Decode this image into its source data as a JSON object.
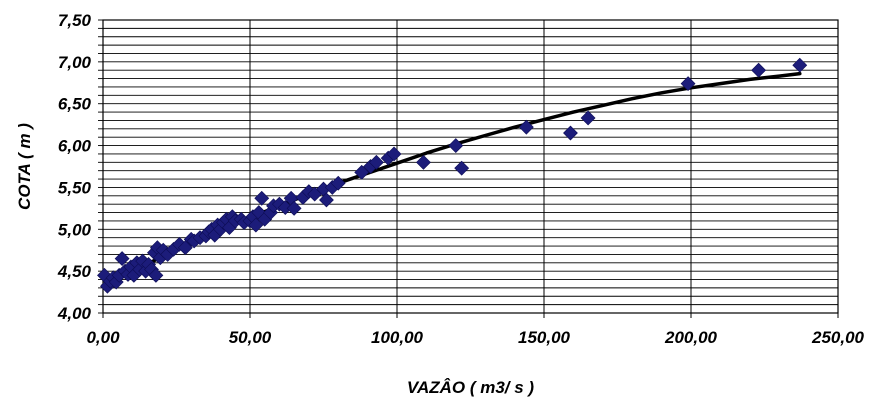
{
  "chart_data": {
    "type": "scatter",
    "title": "",
    "xlabel": "VAZÂO ( m3/ s )",
    "ylabel": "COTA ( m )",
    "xlim": [
      0,
      250
    ],
    "ylim": [
      4.0,
      7.5
    ],
    "x_major_ticks": [
      0,
      50,
      100,
      150,
      200,
      250
    ],
    "x_tick_labels": [
      "0,00",
      "50,00",
      "100,00",
      "150,00",
      "200,00",
      "250,00"
    ],
    "y_ticks": [
      4.0,
      4.1,
      4.2,
      4.3,
      4.4,
      4.5,
      4.6,
      4.7,
      4.8,
      4.9,
      5.0,
      5.1,
      5.2,
      5.3,
      5.4,
      5.5,
      5.6,
      5.7,
      5.8,
      5.9,
      6.0,
      6.1,
      6.2,
      6.3,
      6.4,
      6.5,
      6.6,
      6.7,
      6.8,
      6.9,
      7.0,
      7.1,
      7.2,
      7.3,
      7.4,
      7.5
    ],
    "y_tick_labels": [
      "4,00",
      "4,50",
      "5,00",
      "5,50",
      "6,00",
      "6,50",
      "7,00",
      "7,50"
    ],
    "grid": true,
    "marker_color": "#1c1c7a",
    "curve_color": "#000000",
    "series": [
      {
        "type": "scatter",
        "points": [
          [
            0.5,
            4.45
          ],
          [
            1.5,
            4.32
          ],
          [
            2.5,
            4.38
          ],
          [
            3.5,
            4.42
          ],
          [
            4.5,
            4.37
          ],
          [
            5.5,
            4.45
          ],
          [
            6.5,
            4.65
          ],
          [
            7.5,
            4.5
          ],
          [
            8.5,
            4.46
          ],
          [
            9.5,
            4.55
          ],
          [
            10.5,
            4.45
          ],
          [
            11.5,
            4.6
          ],
          [
            12.5,
            4.52
          ],
          [
            13.5,
            4.62
          ],
          [
            14.5,
            4.5
          ],
          [
            15.5,
            4.58
          ],
          [
            16.5,
            4.52
          ],
          [
            17.5,
            4.72
          ],
          [
            18.0,
            4.45
          ],
          [
            18.5,
            4.78
          ],
          [
            19.5,
            4.66
          ],
          [
            20.5,
            4.75
          ],
          [
            22,
            4.7
          ],
          [
            24,
            4.76
          ],
          [
            26,
            4.82
          ],
          [
            28,
            4.78
          ],
          [
            30,
            4.88
          ],
          [
            31,
            4.86
          ],
          [
            33,
            4.9
          ],
          [
            35,
            4.92
          ],
          [
            36,
            4.97
          ],
          [
            37,
            5.0
          ],
          [
            38,
            4.93
          ],
          [
            39,
            5.05
          ],
          [
            40,
            5.0
          ],
          [
            41,
            5.08
          ],
          [
            42,
            5.12
          ],
          [
            43,
            5.02
          ],
          [
            44,
            5.15
          ],
          [
            45,
            5.1
          ],
          [
            47,
            5.12
          ],
          [
            48,
            5.08
          ],
          [
            50,
            5.1
          ],
          [
            51,
            5.15
          ],
          [
            52,
            5.05
          ],
          [
            53,
            5.2
          ],
          [
            54,
            5.37
          ],
          [
            55,
            5.12
          ],
          [
            57,
            5.2
          ],
          [
            58,
            5.28
          ],
          [
            60,
            5.3
          ],
          [
            62,
            5.26
          ],
          [
            64,
            5.37
          ],
          [
            65,
            5.25
          ],
          [
            68,
            5.38
          ],
          [
            70,
            5.45
          ],
          [
            72,
            5.42
          ],
          [
            75,
            5.48
          ],
          [
            76,
            5.35
          ],
          [
            78,
            5.5
          ],
          [
            80,
            5.55
          ],
          [
            88,
            5.68
          ],
          [
            91,
            5.75
          ],
          [
            93,
            5.8
          ],
          [
            97,
            5.85
          ],
          [
            99,
            5.9
          ],
          [
            109,
            5.8
          ],
          [
            120,
            6.0
          ],
          [
            122,
            5.73
          ],
          [
            144,
            6.22
          ],
          [
            159,
            6.15
          ],
          [
            165,
            6.33
          ],
          [
            199,
            6.74
          ],
          [
            223,
            6.9
          ],
          [
            237,
            6.96
          ]
        ]
      },
      {
        "type": "line",
        "points": [
          [
            0,
            4.33
          ],
          [
            10,
            4.5
          ],
          [
            20,
            4.67
          ],
          [
            30,
            4.84
          ],
          [
            40,
            4.99
          ],
          [
            50,
            5.14
          ],
          [
            60,
            5.28
          ],
          [
            70,
            5.42
          ],
          [
            80,
            5.55
          ],
          [
            90,
            5.67
          ],
          [
            100,
            5.79
          ],
          [
            110,
            5.91
          ],
          [
            120,
            6.02
          ],
          [
            130,
            6.12
          ],
          [
            140,
            6.22
          ],
          [
            150,
            6.31
          ],
          [
            160,
            6.4
          ],
          [
            170,
            6.48
          ],
          [
            180,
            6.56
          ],
          [
            190,
            6.63
          ],
          [
            200,
            6.69
          ],
          [
            210,
            6.74
          ],
          [
            220,
            6.79
          ],
          [
            230,
            6.83
          ],
          [
            237,
            6.86
          ]
        ]
      }
    ]
  }
}
